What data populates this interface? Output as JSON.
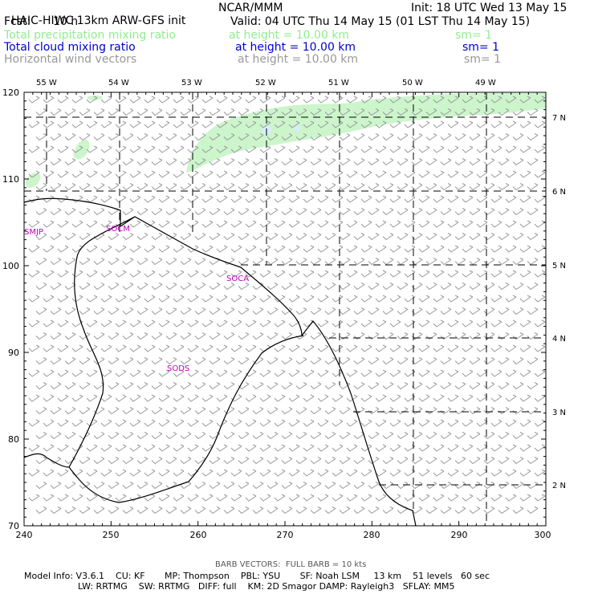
{
  "header": {
    "model_title": "HAIC-HIWC 13km ARW-GFS init",
    "org": "NCAR/MMM",
    "init": "Init: 18 UTC Wed 13 May 15",
    "fcst_label": "Fcst:",
    "fcst_value": "10 h",
    "valid": "Valid: 04 UTC Thu 14 May 15 (01 LST Thu 14 May 15)",
    "fields": [
      {
        "name": "Total precipitation mixing ratio",
        "height": "at height = 10.00 km",
        "sm": "sm= 1",
        "color": "#90ee90"
      },
      {
        "name": "Total cloud mixing ratio",
        "height": "at height = 10.00 km",
        "sm": "sm= 1",
        "color": "#0000cc"
      },
      {
        "name": "Horizontal wind vectors",
        "height": "at height = 10.00 km",
        "sm": "sm= 1",
        "color": "#999999"
      }
    ]
  },
  "map": {
    "x_ticks": [
      "240",
      "250",
      "260",
      "270",
      "280",
      "290",
      "300"
    ],
    "y_ticks": [
      "70",
      "80",
      "90",
      "100",
      "110",
      "120"
    ],
    "lon_labels": [
      "55 W",
      "54 W",
      "53 W",
      "52 W",
      "51 W",
      "50 W",
      "49 W"
    ],
    "lat_labels": [
      "7 N",
      "6 N",
      "5 N",
      "4 N",
      "3 N",
      "2 N"
    ],
    "stations": [
      "SMJP",
      "SOCM",
      "SOCA",
      "SODS"
    ],
    "precip_color": "#ccf5cc",
    "cloud_color": "#d6ecff",
    "barb_color": "#999999",
    "coast_color": "#000000",
    "station_color": "#c000c0"
  },
  "footer": {
    "barb_note": "BARB VECTORS:  FULL BARB = 10 kts",
    "line1": "Model Info: V3.6.1    CU: KF       MP: Thompson    PBL: YSU       SF: Noah LSM     13 km    51 levels   60 sec",
    "line2": "LW: RRTMG    SW: RRTMG   DIFF: full    KM: 2D Smagor DAMP: Rayleigh3   SFLAY: MM5"
  }
}
